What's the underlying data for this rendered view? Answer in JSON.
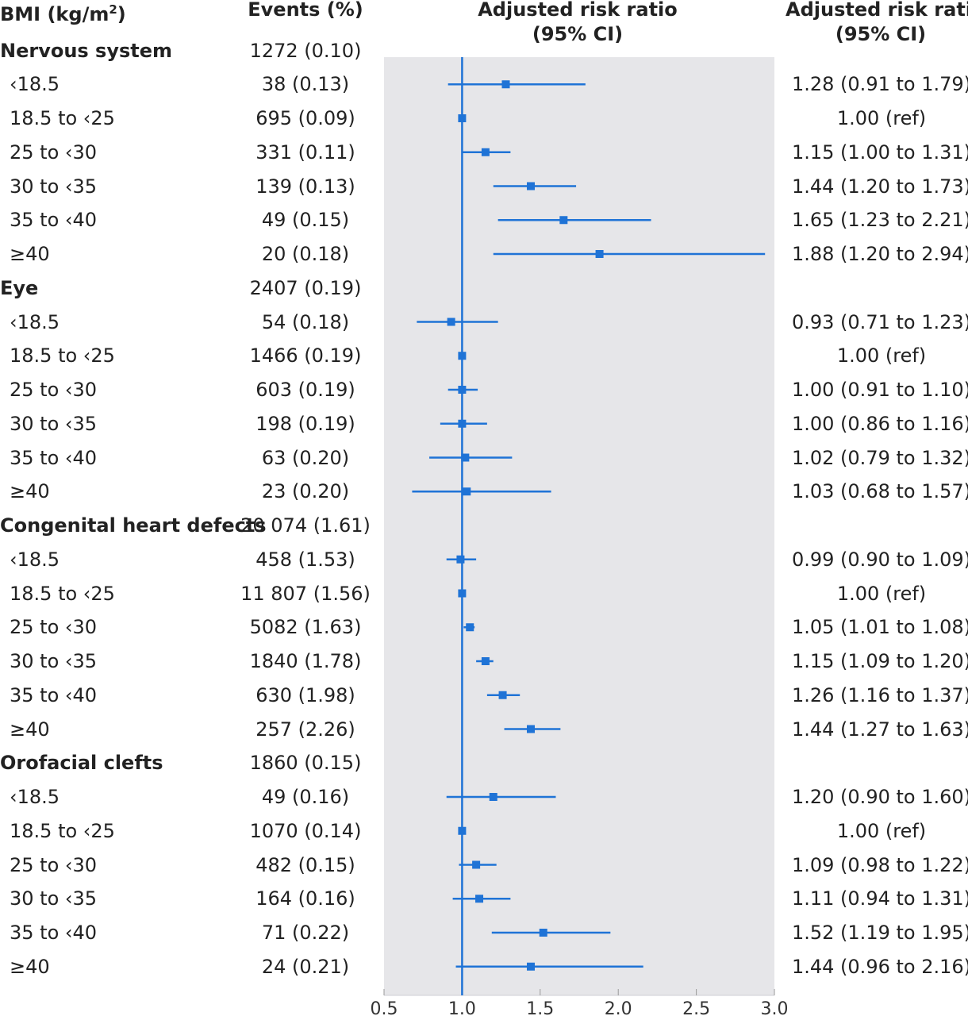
{
  "headers": {
    "bmi": "BMI (kg/m",
    "bmi_sup": "2",
    "bmi_close": ")",
    "events": "Events (%)",
    "plot_line1": "Adjusted risk ratio",
    "plot_line2": "(95% CI)",
    "text_line1": "Adjusted risk ratio",
    "text_line2": "(95% CI)"
  },
  "colors": {
    "marker": "#1f73d6",
    "panel": "#e6e6e9",
    "reference": "#1f73d6"
  },
  "rows": [
    {
      "label": "Nervous system",
      "group": true,
      "events": "1272 (0.10)"
    },
    {
      "label": "‹18.5",
      "events": "38 (0.13)",
      "ci_text": "1.28 (0.91 to 1.79)"
    },
    {
      "label": "18.5 to ‹25",
      "events": "695 (0.09)",
      "ci_text": "1.00 (ref)"
    },
    {
      "label": "25 to ‹30",
      "events": "331 (0.11)",
      "ci_text": "1.15 (1.00 to 1.31)"
    },
    {
      "label": "30 to ‹35",
      "events": "139 (0.13)",
      "ci_text": "1.44 (1.20 to 1.73)"
    },
    {
      "label": "35 to ‹40",
      "events": "49 (0.15)",
      "ci_text": "1.65 (1.23 to 2.21)"
    },
    {
      "label": "≥40",
      "events": "20 (0.18)",
      "ci_text": "1.88 (1.20 to 2.94)"
    },
    {
      "label": "Eye",
      "group": true,
      "events": "2407 (0.19)"
    },
    {
      "label": "‹18.5",
      "events": "54 (0.18)",
      "ci_text": "0.93 (0.71 to 1.23)"
    },
    {
      "label": "18.5 to ‹25",
      "events": "1466 (0.19)",
      "ci_text": "1.00 (ref)"
    },
    {
      "label": "25 to ‹30",
      "events": "603 (0.19)",
      "ci_text": "1.00 (0.91 to 1.10)"
    },
    {
      "label": "30 to ‹35",
      "events": "198 (0.19)",
      "ci_text": "1.00 (0.86 to 1.16)"
    },
    {
      "label": "35 to ‹40",
      "events": "63 (0.20)",
      "ci_text": "1.02 (0.79 to 1.32)"
    },
    {
      "label": "≥40",
      "events": "23 (0.20)",
      "ci_text": "1.03 (0.68 to 1.57)"
    },
    {
      "label": "Congenital heart defects",
      "group": true,
      "events": "20 074 (1.61)"
    },
    {
      "label": "‹18.5",
      "events": "458 (1.53)",
      "ci_text": "0.99 (0.90 to 1.09)"
    },
    {
      "label": "18.5 to ‹25",
      "events": "11 807 (1.56)",
      "ci_text": "1.00 (ref)"
    },
    {
      "label": "25 to ‹30",
      "events": "5082 (1.63)",
      "ci_text": "1.05 (1.01 to 1.08)"
    },
    {
      "label": "30 to ‹35",
      "events": "1840 (1.78)",
      "ci_text": "1.15 (1.09 to 1.20)"
    },
    {
      "label": "35 to ‹40",
      "events": "630 (1.98)",
      "ci_text": "1.26 (1.16 to 1.37)"
    },
    {
      "label": "≥40",
      "events": "257 (2.26)",
      "ci_text": "1.44 (1.27 to 1.63)"
    },
    {
      "label": "Orofacial clefts",
      "group": true,
      "events": "1860 (0.15)"
    },
    {
      "label": "‹18.5",
      "events": "49 (0.16)",
      "ci_text": "1.20 (0.90 to 1.60)"
    },
    {
      "label": "18.5 to ‹25",
      "events": "1070 (0.14)",
      "ci_text": "1.00 (ref)"
    },
    {
      "label": "25 to ‹30",
      "events": "482 (0.15)",
      "ci_text": "1.09 (0.98 to 1.22)"
    },
    {
      "label": "30 to ‹35",
      "events": "164 (0.16)",
      "ci_text": "1.11 (0.94 to 1.31)"
    },
    {
      "label": "35 to ‹40",
      "events": "71 (0.22)",
      "ci_text": "1.52 (1.19 to 1.95)"
    },
    {
      "label": "≥40",
      "events": "24 (0.21)",
      "ci_text": "1.44 (0.96 to 2.16)"
    }
  ],
  "chart_data": {
    "type": "forest",
    "title": "Adjusted risk ratio (95% CI)",
    "xlabel": "Adjusted risk ratio",
    "xlim": [
      0.5,
      3.0
    ],
    "reference_line": 1.0,
    "x_ticks": [
      "0.5",
      "1.0",
      "1.5",
      "2.0",
      "2.5",
      "3.0"
    ],
    "series": [
      {
        "group": "Nervous system",
        "categories": [
          "‹18.5",
          "18.5 to ‹25",
          "25 to ‹30",
          "30 to ‹35",
          "35 to ‹40",
          "≥40"
        ],
        "estimate": [
          1.28,
          1.0,
          1.15,
          1.44,
          1.65,
          1.88
        ],
        "lower": [
          0.91,
          1.0,
          1.0,
          1.2,
          1.23,
          1.2
        ],
        "upper": [
          1.79,
          1.0,
          1.31,
          1.73,
          2.21,
          2.94
        ]
      },
      {
        "group": "Eye",
        "categories": [
          "‹18.5",
          "18.5 to ‹25",
          "25 to ‹30",
          "30 to ‹35",
          "35 to ‹40",
          "≥40"
        ],
        "estimate": [
          0.93,
          1.0,
          1.0,
          1.0,
          1.02,
          1.03
        ],
        "lower": [
          0.71,
          1.0,
          0.91,
          0.86,
          0.79,
          0.68
        ],
        "upper": [
          1.23,
          1.0,
          1.1,
          1.16,
          1.32,
          1.57
        ]
      },
      {
        "group": "Congenital heart defects",
        "categories": [
          "‹18.5",
          "18.5 to ‹25",
          "25 to ‹30",
          "30 to ‹35",
          "35 to ‹40",
          "≥40"
        ],
        "estimate": [
          0.99,
          1.0,
          1.05,
          1.15,
          1.26,
          1.44
        ],
        "lower": [
          0.9,
          1.0,
          1.01,
          1.09,
          1.16,
          1.27
        ],
        "upper": [
          1.09,
          1.0,
          1.08,
          1.2,
          1.37,
          1.63
        ]
      },
      {
        "group": "Orofacial clefts",
        "categories": [
          "‹18.5",
          "18.5 to ‹25",
          "25 to ‹30",
          "30 to ‹35",
          "35 to ‹40",
          "≥40"
        ],
        "estimate": [
          1.2,
          1.0,
          1.09,
          1.11,
          1.52,
          1.44
        ],
        "lower": [
          0.9,
          1.0,
          0.98,
          0.94,
          1.19,
          0.96
        ],
        "upper": [
          1.6,
          1.0,
          1.22,
          1.31,
          1.95,
          2.16
        ]
      }
    ]
  }
}
